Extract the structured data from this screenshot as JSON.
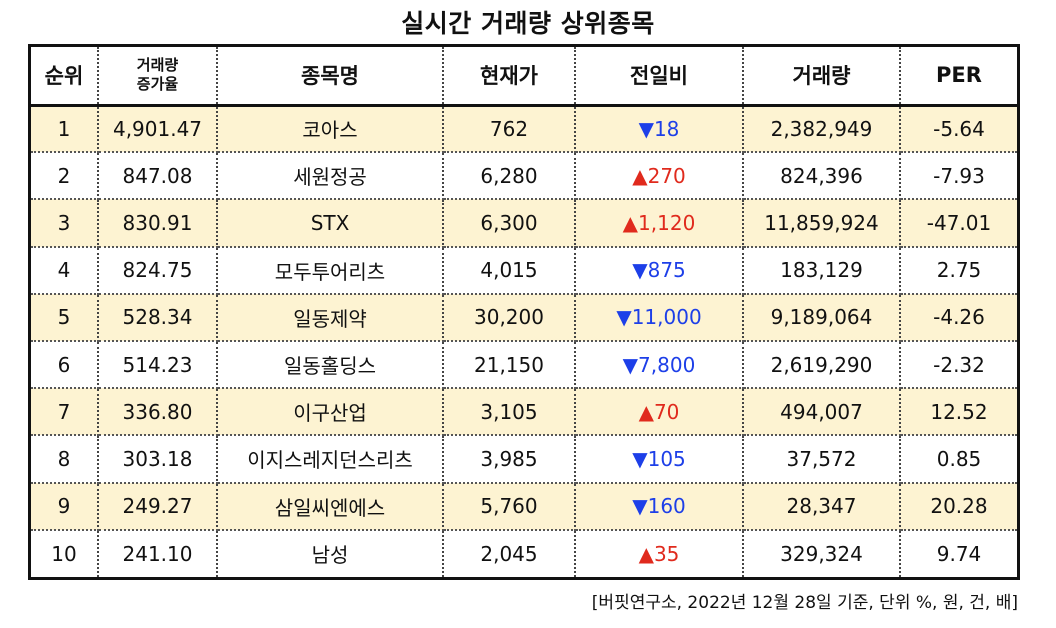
{
  "title": "실시간 거래량 상위종목",
  "columns": [
    "순위",
    "거래량\n증가율",
    "종목명",
    "현재가",
    "전일비",
    "거래량",
    "PER"
  ],
  "colors": {
    "up": "#e02a1d",
    "down": "#1d3fe8",
    "shade": "#fdf3d2"
  },
  "rows": [
    {
      "rank": "1",
      "increase": "4,901.47",
      "name": "코아스",
      "price": "762",
      "change": "▼18",
      "direction": "down",
      "volume": "2,382,949",
      "per": "-5.64"
    },
    {
      "rank": "2",
      "increase": "847.08",
      "name": "세원정공",
      "price": "6,280",
      "change": "▲270",
      "direction": "up",
      "volume": "824,396",
      "per": "-7.93"
    },
    {
      "rank": "3",
      "increase": "830.91",
      "name": "STX",
      "price": "6,300",
      "change": "▲1,120",
      "direction": "up",
      "volume": "11,859,924",
      "per": "-47.01"
    },
    {
      "rank": "4",
      "increase": "824.75",
      "name": "모두투어리츠",
      "price": "4,015",
      "change": "▼875",
      "direction": "down",
      "volume": "183,129",
      "per": "2.75"
    },
    {
      "rank": "5",
      "increase": "528.34",
      "name": "일동제약",
      "price": "30,200",
      "change": "▼11,000",
      "direction": "down",
      "volume": "9,189,064",
      "per": "-4.26"
    },
    {
      "rank": "6",
      "increase": "514.23",
      "name": "일동홀딩스",
      "price": "21,150",
      "change": "▼7,800",
      "direction": "down",
      "volume": "2,619,290",
      "per": "-2.32"
    },
    {
      "rank": "7",
      "increase": "336.80",
      "name": "이구산업",
      "price": "3,105",
      "change": "▲70",
      "direction": "up",
      "volume": "494,007",
      "per": "12.52"
    },
    {
      "rank": "8",
      "increase": "303.18",
      "name": "이지스레지던스리츠",
      "price": "3,985",
      "change": "▼105",
      "direction": "down",
      "volume": "37,572",
      "per": "0.85"
    },
    {
      "rank": "9",
      "increase": "249.27",
      "name": "삼일씨엔에스",
      "price": "5,760",
      "change": "▼160",
      "direction": "down",
      "volume": "28,347",
      "per": "20.28"
    },
    {
      "rank": "10",
      "increase": "241.10",
      "name": "남성",
      "price": "2,045",
      "change": "▲35",
      "direction": "up",
      "volume": "329,324",
      "per": "9.74"
    }
  ],
  "footnote": "[버핏연구소, 2022년 12월 28일 기준, 단위 %, 원, 건, 배]"
}
